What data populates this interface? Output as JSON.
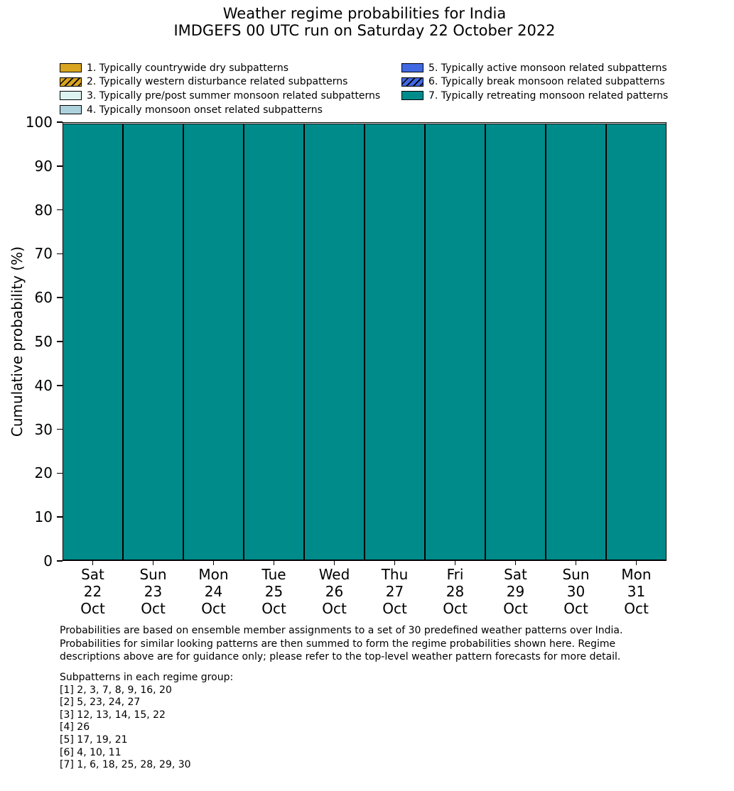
{
  "title": {
    "line1": "Weather regime probabilities for India",
    "line2": "IMDGEFS 00 UTC run on Saturday 22 October 2022"
  },
  "colors": {
    "background": "#ffffff",
    "bar_outline": "#000000",
    "regime1_gold": "#d9a521",
    "regime3_lightcyan": "#ddf3f2",
    "regime4_lightblue": "#aed2dd",
    "regime5_royalblue": "#4169e1",
    "regime7_teal": "#008b8b"
  },
  "legend": {
    "columns": [
      [
        {
          "label": "1. Typically countrywide dry subpatterns",
          "color": "#d9a521",
          "hatch": false
        },
        {
          "label": "2. Typically western disturbance related subpatterns",
          "color": "#d9a521",
          "hatch": true
        },
        {
          "label": "3. Typically pre/post summer monsoon related subpatterns",
          "color": "#ddf3f2",
          "hatch": false
        },
        {
          "label": "4. Typically monsoon onset related subpatterns",
          "color": "#aed2dd",
          "hatch": false
        }
      ],
      [
        {
          "label": "5. Typically active monsoon related subpatterns",
          "color": "#4169e1",
          "hatch": false
        },
        {
          "label": "6. Typically break monsoon related subpatterns",
          "color": "#4169e1",
          "hatch": true
        },
        {
          "label": "7. Typically retreating monsoon related patterns",
          "color": "#008b8b",
          "hatch": false
        }
      ]
    ]
  },
  "chart_data": {
    "type": "bar",
    "stacked": true,
    "title": "Weather regime probabilities for India — IMDGEFS 00 UTC run on Saturday 22 October 2022",
    "xlabel": "",
    "ylabel": "Cumulative probability (%)",
    "ylim": [
      0,
      100
    ],
    "yticks": [
      0,
      10,
      20,
      30,
      40,
      50,
      60,
      70,
      80,
      90,
      100
    ],
    "grid": false,
    "legend_position": "top",
    "categories": [
      [
        "Sat",
        "22",
        "Oct"
      ],
      [
        "Sun",
        "23",
        "Oct"
      ],
      [
        "Mon",
        "24",
        "Oct"
      ],
      [
        "Tue",
        "25",
        "Oct"
      ],
      [
        "Wed",
        "26",
        "Oct"
      ],
      [
        "Thu",
        "27",
        "Oct"
      ],
      [
        "Fri",
        "28",
        "Oct"
      ],
      [
        "Sat",
        "29",
        "Oct"
      ],
      [
        "Sun",
        "30",
        "Oct"
      ],
      [
        "Mon",
        "31",
        "Oct"
      ]
    ],
    "series": [
      {
        "name": "1. Typically countrywide dry subpatterns",
        "color": "#d9a521",
        "hatch": false,
        "values": [
          0,
          0,
          0,
          0,
          0,
          0,
          0,
          0,
          0,
          0
        ]
      },
      {
        "name": "2. Typically western disturbance related subpatterns",
        "color": "#d9a521",
        "hatch": true,
        "values": [
          0,
          0,
          0,
          0,
          0,
          0,
          0,
          0,
          0,
          0
        ]
      },
      {
        "name": "3. Typically pre/post summer monsoon related subpatterns",
        "color": "#ddf3f2",
        "hatch": false,
        "values": [
          0,
          0,
          0,
          0,
          0,
          0,
          0,
          0,
          0,
          0
        ]
      },
      {
        "name": "4. Typically monsoon onset related subpatterns",
        "color": "#aed2dd",
        "hatch": false,
        "values": [
          0,
          0,
          0,
          0,
          0,
          0,
          0,
          0,
          0,
          0
        ]
      },
      {
        "name": "5. Typically active monsoon related subpatterns",
        "color": "#4169e1",
        "hatch": false,
        "values": [
          0,
          0,
          0,
          0,
          0,
          0,
          0,
          0,
          0,
          0
        ]
      },
      {
        "name": "6. Typically break monsoon related subpatterns",
        "color": "#4169e1",
        "hatch": true,
        "values": [
          0,
          0,
          0,
          0,
          0,
          0,
          0,
          0,
          0,
          0
        ]
      },
      {
        "name": "7. Typically retreating monsoon related patterns",
        "color": "#008b8b",
        "hatch": false,
        "values": [
          100,
          100,
          100,
          100,
          100,
          100,
          100,
          100,
          100,
          100
        ]
      }
    ]
  },
  "footnote": {
    "lines": [
      "Probabilities are based on ensemble member assignments to a set of 30 predefined weather patterns over India.",
      "Probabilities for similar looking patterns are then summed to form the regime probabilities shown here. Regime",
      "descriptions above are for guidance only; please refer to the top-level weather pattern forecasts for more detail."
    ]
  },
  "subpatterns": {
    "header": "Subpatterns in each regime group:",
    "lines": [
      "[1] 2, 3, 7, 8, 9, 16, 20",
      "[2] 5, 23, 24, 27",
      "[3] 12, 13, 14, 15, 22",
      "[4] 26",
      "[5] 17, 19, 21",
      "[6] 4, 10, 11",
      "[7] 1, 6, 18, 25, 28, 29, 30"
    ]
  }
}
